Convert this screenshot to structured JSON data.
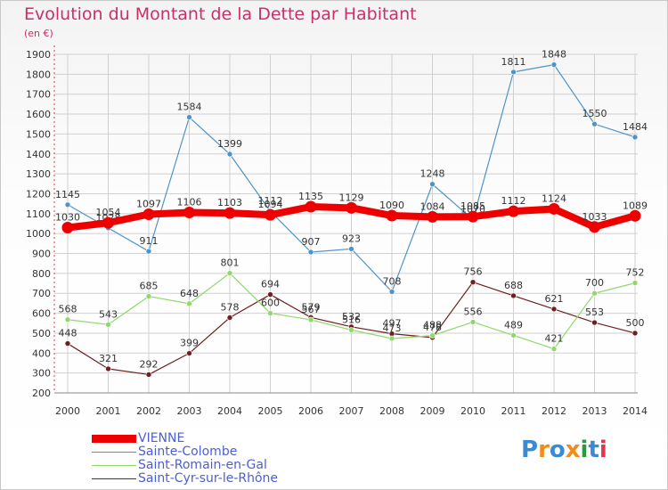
{
  "colors": {
    "title": "#c8306c",
    "axis_text": "#333333",
    "grid": "#d0d0d0",
    "axis_red": "#e8334a",
    "legend_text": "#4d5fd0"
  },
  "chart_data": {
    "type": "line",
    "title": "Evolution du Montant de la Dette par Habitant",
    "subtitle": "(en €)",
    "xlabel": "",
    "ylabel": "",
    "ylim": [
      200,
      1900
    ],
    "yticks": [
      "200",
      "300",
      "400",
      "500",
      "600",
      "700",
      "800",
      "900",
      "1000",
      "1100",
      "1200",
      "1300",
      "1400",
      "1500",
      "1600",
      "1700",
      "1800",
      "1900"
    ],
    "categories": [
      "2000",
      "2001",
      "2002",
      "2003",
      "2004",
      "2005",
      "2006",
      "2007",
      "2008",
      "2009",
      "2010",
      "2011",
      "2012",
      "2013",
      "2014"
    ],
    "grid": true,
    "legend_placement": "bottom-left",
    "series": [
      {
        "name": "Saint-Cyr-sur-le-Rhône",
        "color": "#6e1f1f",
        "values": [
          448,
          321,
          292,
          399,
          578,
          694,
          579,
          532,
          497,
          478,
          756,
          688,
          621,
          553,
          500
        ],
        "labels": [
          "448",
          "321",
          "292",
          "399",
          "578",
          "694",
          "579",
          "532",
          "497",
          "478",
          "756",
          "688",
          "621",
          "553",
          "500"
        ]
      },
      {
        "name": "Saint-Romain-en-Gal",
        "color": "#8ed96a",
        "values": [
          568,
          543,
          685,
          648,
          801,
          600,
          567,
          516,
          473,
          488,
          556,
          489,
          421,
          700,
          752
        ],
        "labels": [
          "568",
          "543",
          "685",
          "648",
          "801",
          "600",
          "567",
          "516",
          "473",
          "488",
          "556",
          "489",
          "421",
          "700",
          "752"
        ]
      },
      {
        "name": "Sainte-Colombe",
        "color": "#4f94c8",
        "values": [
          1145,
          1028,
          911,
          1584,
          1399,
          1112,
          907,
          923,
          708,
          1248,
          1070,
          1811,
          1848,
          1550,
          1484
        ],
        "labels": [
          "1145",
          "1028",
          "911",
          "1584",
          "1399",
          "1112",
          "907",
          "923",
          "708",
          "1248",
          "1070",
          "1811",
          "1848",
          "1550",
          "1484"
        ]
      },
      {
        "name": "VIENNE",
        "color": "#ee0000",
        "values": [
          1030,
          1054,
          1097,
          1106,
          1103,
          1094,
          1135,
          1129,
          1090,
          1084,
          1085,
          1112,
          1124,
          1033,
          1089
        ],
        "labels": [
          "1030",
          "1054",
          "1097",
          "1106",
          "1103",
          "1094",
          "1135",
          "1129",
          "1090",
          "1084",
          "1085",
          "1112",
          "1124",
          "1033",
          "1089"
        ]
      }
    ]
  },
  "legend": {
    "items": [
      "VIENNE",
      "Sainte-Colombe",
      "Saint-Romain-en-Gal",
      "Saint-Cyr-sur-le-Rhône"
    ]
  },
  "logo": {
    "text": "Proxiti",
    "letter_colors": [
      "#3a8ad4",
      "#f08c1e",
      "#3a8ad4",
      "#f08c1e",
      "#2a9a3a",
      "#3a8ad4",
      "#e8334a"
    ]
  }
}
